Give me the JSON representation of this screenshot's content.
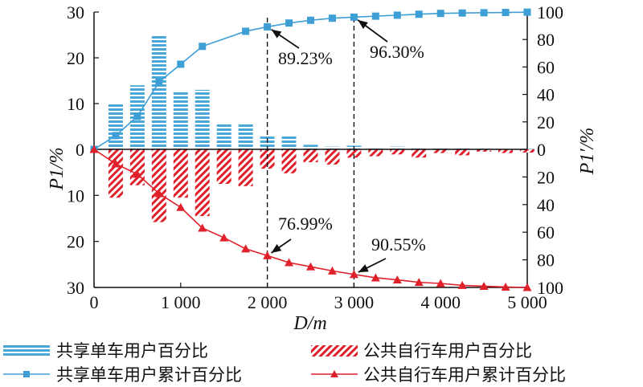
{
  "chart_data": {
    "type": "bar",
    "xlabel": "D/m",
    "ylabel_left": "P1/%",
    "ylabel_right": "P1′/%",
    "x_ticks": [
      {
        "value": 0,
        "label": "0"
      },
      {
        "value": 1000,
        "label": "1 000"
      },
      {
        "value": 2000,
        "label": "2 000"
      },
      {
        "value": 3000,
        "label": "3 000"
      },
      {
        "value": 4000,
        "label": "4 000"
      },
      {
        "value": 5000,
        "label": "5 000"
      }
    ],
    "left_ticks_upper": [
      "30",
      "20",
      "10",
      "0"
    ],
    "left_ticks_lower": [
      "10",
      "20",
      "30"
    ],
    "right_ticks_upper": [
      "100",
      "80",
      "60",
      "40",
      "20",
      "0"
    ],
    "right_ticks_lower": [
      "20",
      "40",
      "60",
      "80",
      "100"
    ],
    "xlim": [
      0,
      5000
    ],
    "ylim_pct": [
      0,
      30
    ],
    "ylim_cum": [
      0,
      100
    ],
    "bar_x": [
      250,
      500,
      750,
      1000,
      1250,
      1500,
      1750,
      2000,
      2250,
      2500,
      2750,
      3000,
      3250,
      3500,
      3750,
      4000,
      4250,
      4500,
      4750,
      5000
    ],
    "series": [
      {
        "name": "共享单车用户百分比",
        "kind": "bar",
        "direction": "up",
        "color": "#4aa8d8",
        "values": [
          10,
          14,
          25,
          12.7,
          13,
          5.7,
          5.7,
          2.9,
          3.0,
          1.0,
          0.6,
          0.8,
          0.5,
          0.6,
          0.3,
          0.3,
          0.2,
          0.15,
          0.1,
          0.1
        ]
      },
      {
        "name": "公共自行车用户百分比",
        "kind": "bar",
        "direction": "down",
        "color": "#e0202a",
        "values": [
          10.5,
          7.8,
          15.8,
          10.5,
          14.5,
          7.5,
          8.0,
          4.2,
          5.2,
          2.8,
          3.3,
          1.8,
          1.5,
          1.1,
          1.8,
          0.8,
          1.3,
          0.5,
          0.8,
          0.7
        ]
      },
      {
        "name": "共享单车用户累计百分比",
        "kind": "line",
        "direction": "up",
        "color": "#3d9fd6",
        "x": [
          0,
          250,
          500,
          750,
          1000,
          1250,
          1750,
          2000,
          2250,
          2500,
          2750,
          3000,
          3250,
          3500,
          3750,
          4000,
          4250,
          4500,
          4750,
          5000
        ],
        "values": [
          0,
          10,
          24,
          49,
          62,
          75,
          86,
          89.23,
          92,
          94,
          95.5,
          96.3,
          97,
          97.7,
          98.4,
          99,
          99.3,
          99.5,
          99.7,
          99.9
        ]
      },
      {
        "name": "公共自行车用户累计百分比",
        "kind": "line",
        "direction": "down",
        "color": "#e0202a",
        "x": [
          0,
          250,
          500,
          750,
          1000,
          1250,
          1500,
          1750,
          2000,
          2250,
          2500,
          2750,
          3000,
          3250,
          3500,
          3750,
          4000,
          4250,
          4500,
          4750,
          5000
        ],
        "values": [
          0,
          10.5,
          18,
          32,
          42,
          57,
          64,
          72,
          76.99,
          82,
          85,
          88,
          90.55,
          93,
          94.5,
          96.3,
          97.1,
          98.5,
          99.1,
          99.7,
          100
        ]
      }
    ],
    "vlines": [
      2000,
      3000
    ],
    "annotations": [
      {
        "label": "89.23%",
        "x": 2000,
        "y": 89.23,
        "series": "up"
      },
      {
        "label": "96.30%",
        "x": 3000,
        "y": 96.3,
        "series": "up"
      },
      {
        "label": "76.99%",
        "x": 2000,
        "y": 76.99,
        "series": "down"
      },
      {
        "label": "90.55%",
        "x": 3000,
        "y": 90.55,
        "series": "down"
      }
    ],
    "legend": {
      "placement": "bottom",
      "items": [
        "共享单车用户百分比",
        "公共自行车用户百分比",
        "共享单车用户累计百分比",
        "公共自行车用户累计百分比"
      ]
    }
  }
}
